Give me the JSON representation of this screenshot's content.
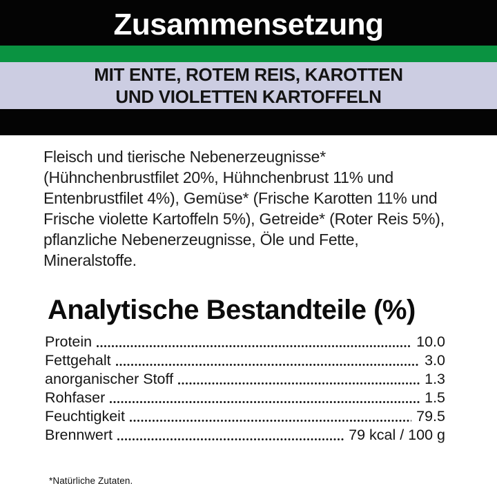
{
  "header": {
    "title": "Zusammensetzung"
  },
  "variant": {
    "line1": "MIT ENTE, ROTEM REIS, KAROTTEN",
    "line2": "UND VIOLETTEN KARTOFFELN"
  },
  "ingredients": {
    "text": "Fleisch und tierische Nebenerzeugnisse*\n(Hühnchenbrustfilet 20%, Hühnchenbrust 11% und\nEntenbrustfilet 4%), Gemüse* (Frische Karotten 11% und\nFrische violette Kartoffeln 5%), Getreide* (Roter Reis 5%),\npflanzliche Nebenerzeugnisse, Öle und Fette,\nMineralstoffe."
  },
  "analysis": {
    "title": "Analytische Bestandteile (%)",
    "rows": [
      {
        "label": "Protein",
        "value": "10.0"
      },
      {
        "label": "Fettgehalt",
        "value": "3.0"
      },
      {
        "label": "anorganischer Stoff",
        "value": "1.3"
      },
      {
        "label": "Rohfaser",
        "value": "1.5"
      },
      {
        "label": "Feuchtigkeit",
        "value": "79.5"
      },
      {
        "label": "Brennwert",
        "value": "79 kcal / 100 g"
      }
    ]
  },
  "footnote": "*Natürliche Zutaten.",
  "colors": {
    "green": "#0a9341",
    "lavender": "#cccde2",
    "band-black": "#040404",
    "text-dark": "#1c1c1c",
    "body-bg": "#ffffff"
  }
}
